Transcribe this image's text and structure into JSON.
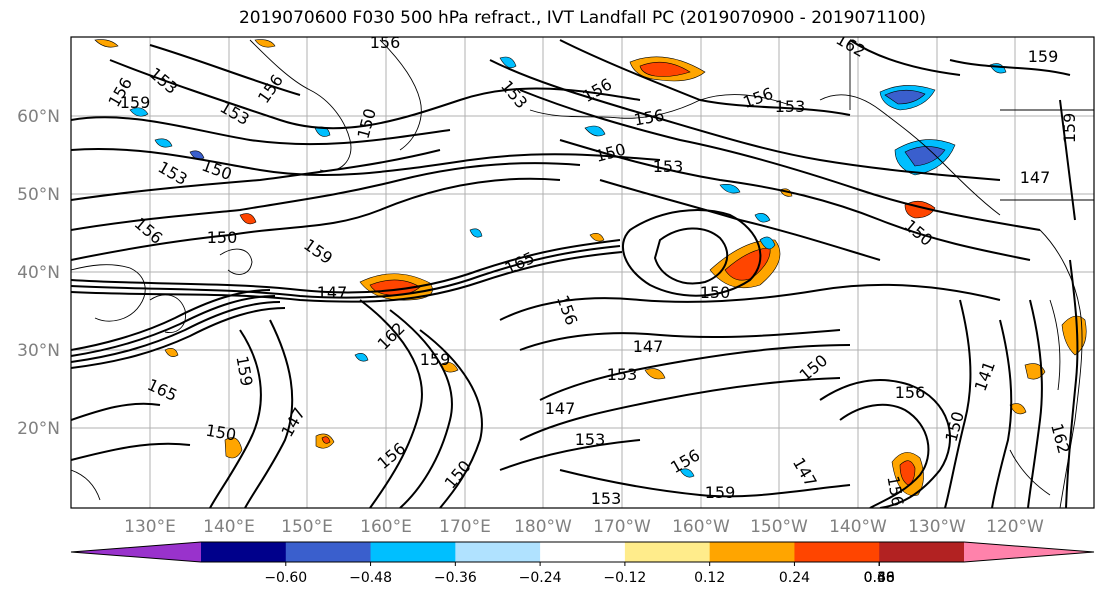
{
  "title": "2019070600 F030 500 hPa refract., IVT Landfall PC (2019070900 - 2019071100)",
  "map": {
    "lat_labels": [
      "60°N",
      "50°N",
      "40°N",
      "30°N",
      "20°N"
    ],
    "lon_labels": [
      "130°E",
      "140°E",
      "150°E",
      "160°E",
      "170°E",
      "180°W",
      "170°W",
      "160°W",
      "150°W",
      "140°W",
      "130°W",
      "120°W"
    ],
    "contour_labels": [
      "156",
      "156",
      "153",
      "159",
      "156",
      "153",
      "150",
      "153",
      "156",
      "153",
      "150",
      "156",
      "156",
      "150",
      "153",
      "156",
      "153",
      "150",
      "159",
      "150",
      "147",
      "165",
      "162",
      "156",
      "150",
      "147",
      "153",
      "150",
      "159",
      "147",
      "153",
      "147",
      "156",
      "150",
      "153",
      "159",
      "162",
      "159",
      "165",
      "147",
      "156",
      "150",
      "156",
      "147",
      "141",
      "150",
      "159",
      "162",
      "159",
      "156"
    ],
    "colors": {
      "coast": "#000000",
      "grid": "#b0b0b0",
      "contour": "#000000"
    }
  },
  "colorbar": {
    "colors": [
      "#9932cc",
      "#00008b",
      "#3a5fcd",
      "#00bfff",
      "#b0e2ff",
      "#ffffff",
      "#ffec8b",
      "#ffa500",
      "#ff4500",
      "#b22222",
      "#ff82ab"
    ],
    "tick_labels": [
      "−0.60",
      "−0.48",
      "−0.36",
      "−0.24",
      "−0.12",
      "0.12",
      "0.24",
      "0.36",
      "0.48",
      "0.60"
    ]
  }
}
